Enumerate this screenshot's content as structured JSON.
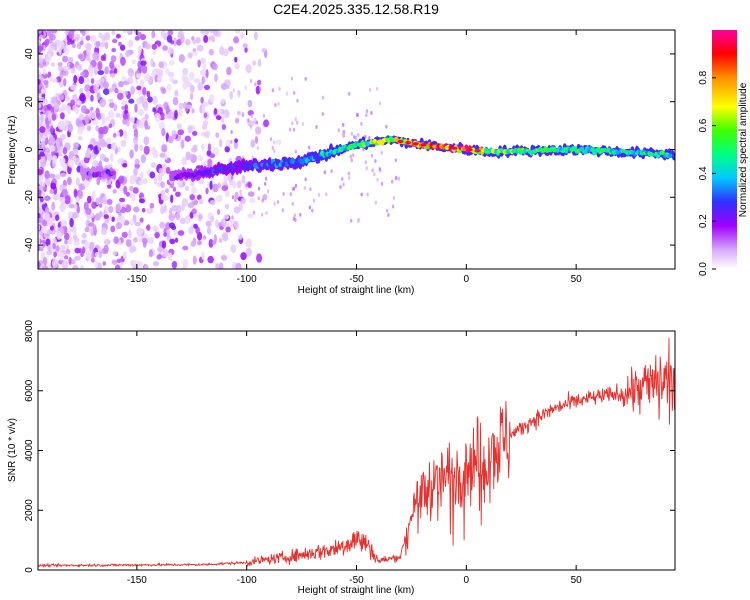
{
  "title": "C2E4.2025.335.12.58.R19",
  "chart_data": [
    {
      "type": "heatmap",
      "xlabel": "Height of straight line (km)",
      "ylabel": "Frequency (Hz)",
      "xlim": [
        -195,
        95
      ],
      "ylim": [
        -50,
        50
      ],
      "xticks": [
        -150,
        -100,
        -50,
        0,
        50
      ],
      "yticks": [
        -40,
        -20,
        0,
        20,
        40
      ],
      "colorbar": {
        "label": "Normalized spectral amplitude",
        "range": [
          0.0,
          1.0
        ],
        "ticks": [
          0.0,
          0.2,
          0.4,
          0.6,
          0.8
        ],
        "tick_labels": [
          "0.0",
          "0.2",
          "0.4",
          "0.6",
          "0.8"
        ],
        "colors": [
          "#ffffff",
          "#a000ff",
          "#3030ff",
          "#00c8ff",
          "#00ff80",
          "#40ff00",
          "#ffff00",
          "#ff9000",
          "#ff0000",
          "#ff00a0"
        ]
      },
      "trace": {
        "description_points": [
          {
            "x": -170,
            "y": -10,
            "amp": 0.15
          },
          {
            "x": -130,
            "y": -11,
            "amp": 0.2
          },
          {
            "x": -100,
            "y": -7,
            "amp": 0.3
          },
          {
            "x": -75,
            "y": -5,
            "amp": 0.35
          },
          {
            "x": -50,
            "y": 2,
            "amp": 0.5
          },
          {
            "x": -35,
            "y": 4,
            "amp": 0.7
          },
          {
            "x": -20,
            "y": 2,
            "amp": 0.85
          },
          {
            "x": 0,
            "y": 0,
            "amp": 0.95
          },
          {
            "x": 10,
            "y": -1,
            "amp": 0.6
          },
          {
            "x": 50,
            "y": 0,
            "amp": 0.5
          },
          {
            "x": 90,
            "y": -2,
            "amp": 0.5
          }
        ]
      }
    },
    {
      "type": "line",
      "xlabel": "Height of straight line (km)",
      "ylabel": "SNR (10 * v/v)",
      "xlim": [
        -195,
        95
      ],
      "ylim": [
        0,
        8000
      ],
      "xticks": [
        -150,
        -100,
        -50,
        0,
        50
      ],
      "yticks": [
        0,
        2000,
        4000,
        6000,
        8000
      ],
      "color": "#e8302c",
      "series_envelope": [
        {
          "x": -195,
          "y": 150
        },
        {
          "x": -120,
          "y": 180
        },
        {
          "x": -100,
          "y": 250
        },
        {
          "x": -80,
          "y": 450
        },
        {
          "x": -60,
          "y": 700
        },
        {
          "x": -50,
          "y": 1050
        },
        {
          "x": -45,
          "y": 850
        },
        {
          "x": -40,
          "y": 300
        },
        {
          "x": -30,
          "y": 450
        },
        {
          "x": -25,
          "y": 1900
        },
        {
          "x": -20,
          "y": 2600
        },
        {
          "x": -10,
          "y": 3100
        },
        {
          "x": 0,
          "y": 3500
        },
        {
          "x": 10,
          "y": 3900
        },
        {
          "x": 20,
          "y": 4500
        },
        {
          "x": 30,
          "y": 5000
        },
        {
          "x": 40,
          "y": 5400
        },
        {
          "x": 50,
          "y": 5650
        },
        {
          "x": 60,
          "y": 5800
        },
        {
          "x": 70,
          "y": 5900
        },
        {
          "x": 80,
          "y": 6100
        },
        {
          "x": 95,
          "y": 6400
        }
      ]
    }
  ]
}
